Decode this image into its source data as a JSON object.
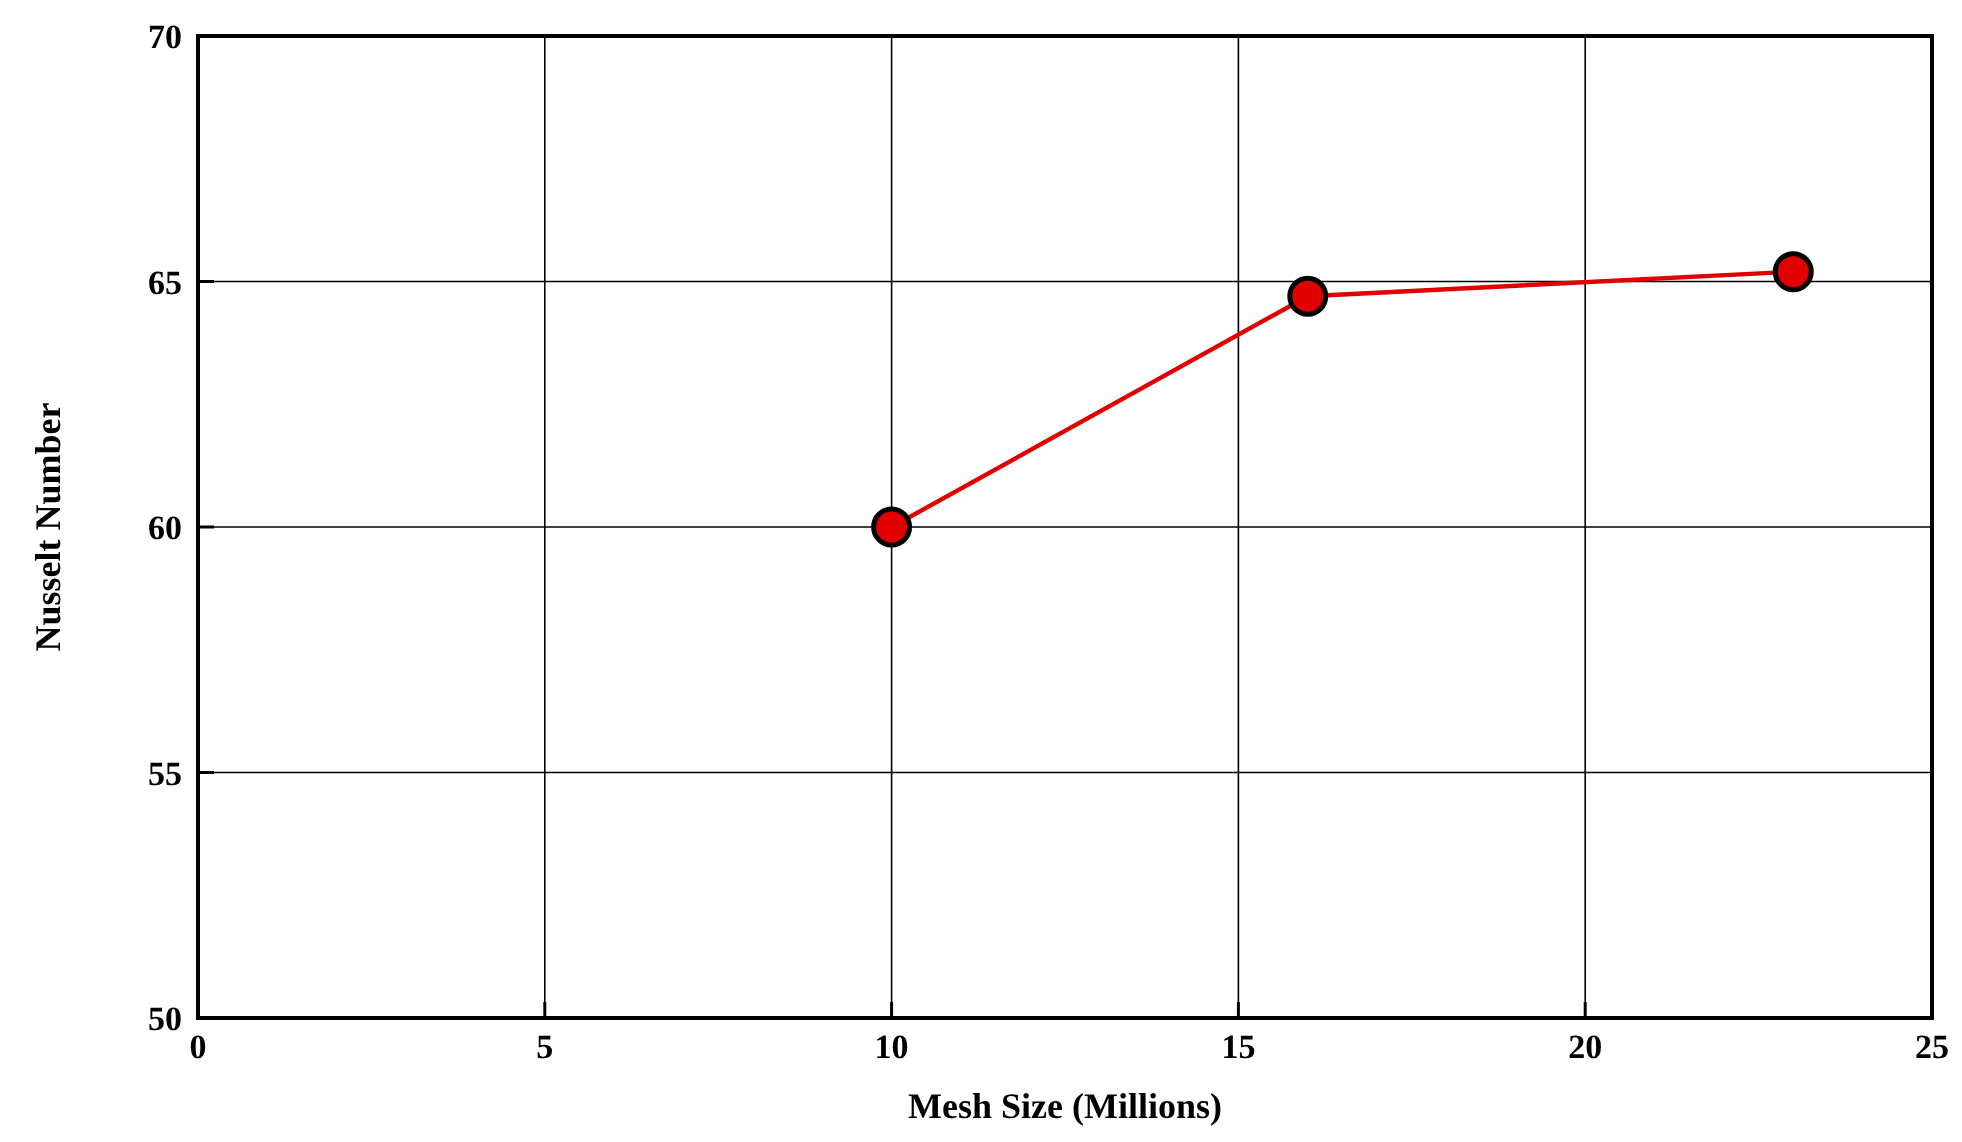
{
  "chart_data": {
    "type": "line",
    "xlabel": "Mesh Size (Millions)",
    "ylabel": "Nusselt Number",
    "x": [
      10,
      16,
      23
    ],
    "series": [
      {
        "color": "#e00000",
        "values": [
          60,
          64.7,
          65.2
        ]
      }
    ],
    "xlim": [
      0,
      25
    ],
    "xticks": [
      0,
      5,
      10,
      15,
      20,
      25
    ],
    "ylim": [
      50,
      70
    ],
    "yticks": [
      50,
      55,
      60,
      65,
      70
    ],
    "grid": true,
    "marker": "circle",
    "line_style": "solid"
  }
}
